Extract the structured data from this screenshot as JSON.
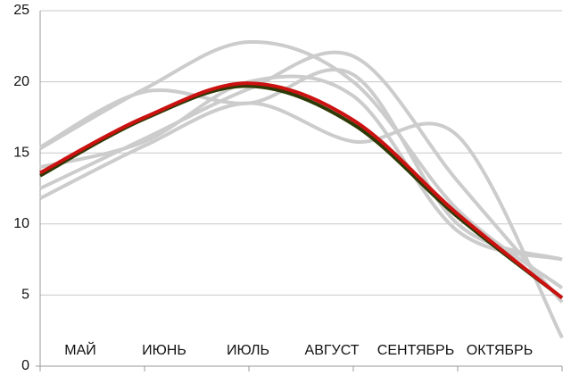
{
  "chart_data": {
    "type": "line",
    "categories": [
      "МАЙ",
      "ИЮНЬ",
      "ИЮЛЬ",
      "АВГУСТ",
      "СЕНТЯБРЬ",
      "ОКТЯБРЬ"
    ],
    "series": [
      {
        "color": "#cccccc",
        "values": [
          15.3,
          19.5,
          22.8,
          20,
          11,
          5.5
        ]
      },
      {
        "color": "#cccccc",
        "values": [
          12.5,
          16,
          19.5,
          21.8,
          13,
          4.5
        ]
      },
      {
        "color": "#cccccc",
        "values": [
          11.8,
          15.5,
          18.5,
          15.8,
          16.2,
          2
        ]
      },
      {
        "color": "#cccccc",
        "values": [
          15.4,
          19.3,
          18.5,
          20.5,
          10,
          7.5
        ]
      },
      {
        "color": "#cccccc",
        "values": [
          14,
          15.8,
          20,
          19,
          9.5,
          7.5
        ]
      },
      {
        "color": "#2e3a06",
        "values": [
          13.4,
          17.4,
          19.7,
          17,
          10.5,
          4.8
        ]
      },
      {
        "color": "#cc1111",
        "values": [
          13.6,
          17.5,
          19.9,
          17.3,
          10.7,
          4.8
        ]
      }
    ],
    "ylim": [
      0,
      25
    ],
    "yticks": [
      0,
      5,
      10,
      15,
      20,
      25
    ],
    "grid": true
  }
}
